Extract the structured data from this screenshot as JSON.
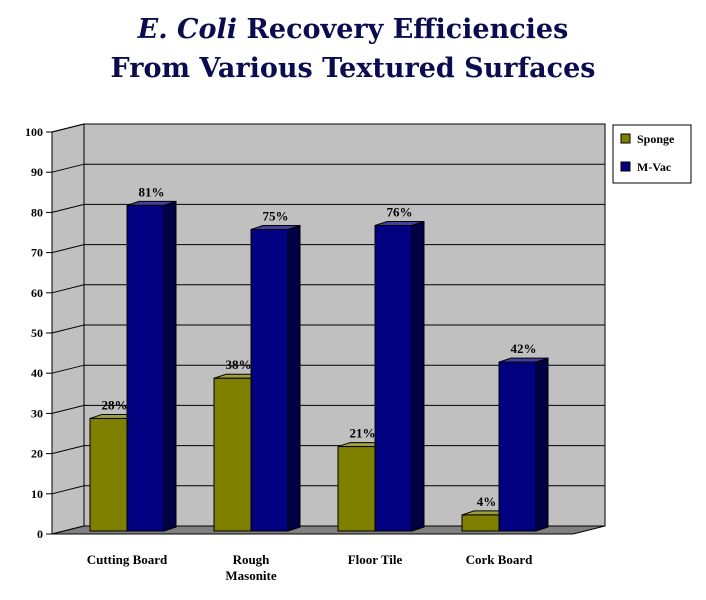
{
  "chart_data": {
    "type": "bar",
    "title_italic": "E. Coli",
    "title_rest": " Recovery Efficiencies",
    "title_line2": "From Various Textured Surfaces",
    "categories": [
      "Cutting Board",
      "Rough Masonite",
      "Floor Tile",
      "Cork Board"
    ],
    "category_lines": [
      [
        "Cutting Board"
      ],
      [
        "Rough",
        "Masonite"
      ],
      [
        "Floor Tile"
      ],
      [
        "Cork Board"
      ]
    ],
    "series": [
      {
        "name": "Sponge",
        "values": [
          28,
          38,
          21,
          4
        ],
        "labels": [
          "28%",
          "38%",
          "21%",
          "4%"
        ],
        "color": "#7f7f00"
      },
      {
        "name": "M-Vac",
        "values": [
          81,
          75,
          76,
          42
        ],
        "labels": [
          "81%",
          "75%",
          "76%",
          "42%"
        ],
        "color": "#000080"
      }
    ],
    "ylim": [
      0,
      100
    ],
    "yticks": [
      "0",
      "10",
      "20",
      "30",
      "40",
      "50",
      "60",
      "70",
      "80",
      "90",
      "100"
    ],
    "grid": true,
    "legend_position": "top-right",
    "wall_color": "#c0c0c0",
    "floor_color": "#808080"
  }
}
